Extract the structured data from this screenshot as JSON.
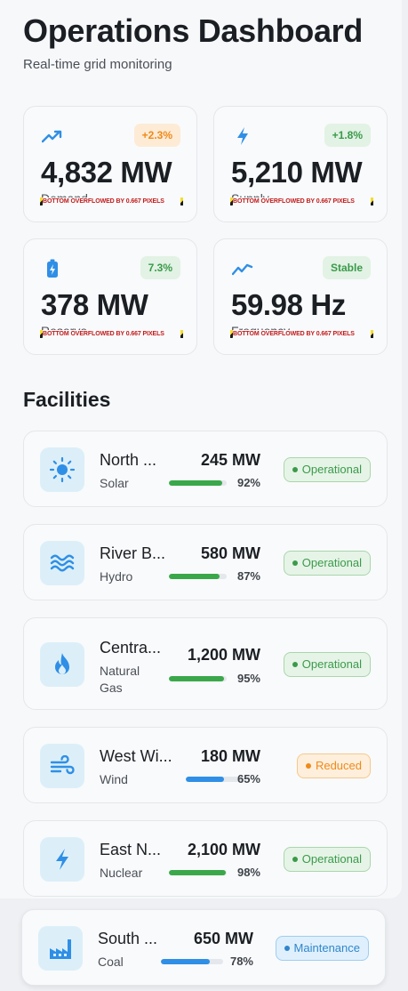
{
  "header": {
    "title": "Operations Dashboard",
    "subtitle": "Real-time grid monitoring"
  },
  "stats": [
    {
      "icon": "trending-up-icon",
      "badge": "+2.3%",
      "badge_color": "orange",
      "value": "4,832 MW",
      "label": "Demand",
      "overflow": "BOTTOM OVERFLOWED BY 0.667 PIXELS"
    },
    {
      "icon": "bolt-icon",
      "badge": "+1.8%",
      "badge_color": "green",
      "value": "5,210 MW",
      "label": "Supply",
      "overflow": "BOTTOM OVERFLOWED BY 0.667 PIXELS"
    },
    {
      "icon": "battery-icon",
      "badge": "7.3%",
      "badge_color": "green",
      "value": "378 MW",
      "label": "Reserve",
      "overflow": "BOTTOM OVERFLOWED BY 0.667 PIXELS"
    },
    {
      "icon": "frequency-icon",
      "badge": "Stable",
      "badge_color": "green",
      "value": "59.98 Hz",
      "label": "Frequency",
      "overflow": "BOTTOM OVERFLOWED BY 0.667 PIXELS"
    }
  ],
  "section_title": "Facilities",
  "facilities": [
    {
      "icon": "sun-icon",
      "name": "North ...",
      "type": "Solar",
      "output": "245 MW",
      "capacity_pct": "92%",
      "capacity": 0.92,
      "status": "Operational",
      "bar_color": "#3aa84a"
    },
    {
      "icon": "water-icon",
      "name": "River B...",
      "type": "Hydro",
      "output": "580 MW",
      "capacity_pct": "87%",
      "capacity": 0.87,
      "status": "Operational",
      "bar_color": "#3aa84a"
    },
    {
      "icon": "flame-icon",
      "name": "Centra...",
      "type": "Natural Gas",
      "output": "1,200 MW",
      "capacity_pct": "95%",
      "capacity": 0.95,
      "status": "Operational",
      "bar_color": "#3aa84a"
    },
    {
      "icon": "wind-icon",
      "name": "West Wi...",
      "type": "Wind",
      "output": "180 MW",
      "capacity_pct": "65%",
      "capacity": 0.65,
      "status": "Reduced",
      "bar_color": "#2f8fe6"
    },
    {
      "icon": "bolt-icon",
      "name": "East N...",
      "type": "Nuclear",
      "output": "2,100 MW",
      "capacity_pct": "98%",
      "capacity": 0.98,
      "status": "Operational",
      "bar_color": "#3aa84a"
    },
    {
      "icon": "factory-icon",
      "name": "South ...",
      "type": "Coal",
      "output": "650 MW",
      "capacity_pct": "78%",
      "capacity": 0.78,
      "status": "Maintenance",
      "bar_color": "#2f8fe6"
    }
  ]
}
